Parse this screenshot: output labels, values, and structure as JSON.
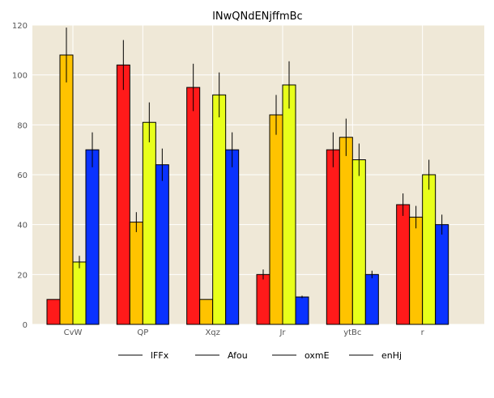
{
  "chart_data": {
    "type": "bar",
    "title": "lNwQNdENjffmBc",
    "xlabel": "",
    "ylabel": "",
    "categories": [
      "CvW",
      "QP",
      "Xqz",
      "Jr",
      "ytBc",
      "r"
    ],
    "ylim": [
      0,
      120
    ],
    "yticks": [
      0,
      20,
      40,
      60,
      80,
      100,
      120
    ],
    "grid": true,
    "legend_position": "bottom",
    "background_color": "#efe8d7",
    "series": [
      {
        "name": "lFFx",
        "color": "#ff1a1a",
        "values": [
          10,
          104,
          95,
          20,
          70,
          48
        ],
        "errors": [
          0,
          10,
          9.5,
          2,
          7,
          4.5
        ]
      },
      {
        "name": "Afou",
        "color": "#ffc300",
        "values": [
          108,
          41,
          10,
          84,
          75,
          43
        ],
        "errors": [
          11,
          4,
          0,
          8,
          7.5,
          4.5
        ]
      },
      {
        "name": "oxmE",
        "color": "#e8ff1a",
        "values": [
          25,
          81,
          92,
          96,
          66,
          60
        ],
        "errors": [
          2.5,
          8,
          9,
          9.5,
          6.5,
          6
        ]
      },
      {
        "name": "enHj",
        "color": "#0a32ff",
        "values": [
          70,
          64,
          70,
          11,
          20,
          40
        ],
        "errors": [
          7,
          6.5,
          7,
          0.5,
          1.5,
          4
        ]
      }
    ]
  }
}
